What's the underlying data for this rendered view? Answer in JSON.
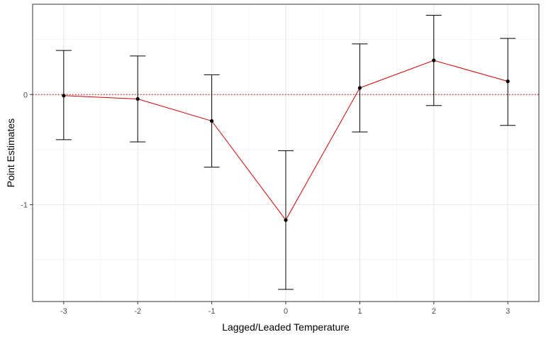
{
  "chart_data": {
    "type": "line",
    "title": "",
    "xlabel": "Lagged/Leaded Temperature",
    "ylabel": "Point Estimates",
    "x": [
      -3,
      -2,
      -1,
      0,
      1,
      2,
      3
    ],
    "series": [
      {
        "values": [
          -0.01,
          -0.04,
          -0.24,
          -1.14,
          0.06,
          0.31,
          0.12
        ],
        "lower": [
          -0.41,
          -0.43,
          -0.66,
          -1.77,
          -0.34,
          -0.1,
          -0.28
        ],
        "upper": [
          0.4,
          0.35,
          0.18,
          -0.51,
          0.46,
          0.72,
          0.51
        ],
        "line_color": "#cc0000",
        "point_color": "#000000"
      }
    ],
    "xlim": [
      -3.42,
      3.42
    ],
    "ylim": [
      -1.88,
      0.82
    ],
    "x_ticks": [
      -3,
      -2,
      -1,
      0,
      1,
      2,
      3
    ],
    "x_tick_labels": [
      "-3",
      "-2",
      "-1",
      "0",
      "1",
      "2",
      "3"
    ],
    "y_ticks": [
      -1,
      0
    ],
    "y_tick_labels": [
      "-1",
      "0"
    ],
    "x_minor_ticks": [
      -2.5,
      -1.5,
      -0.5,
      0.5,
      1.5,
      2.5
    ],
    "y_minor_ticks": [
      -1.5,
      -0.5,
      0.5
    ],
    "reference_line": {
      "y": 0,
      "style": "dotted",
      "color": "#cc0000"
    },
    "grid": true,
    "legend": "none"
  }
}
